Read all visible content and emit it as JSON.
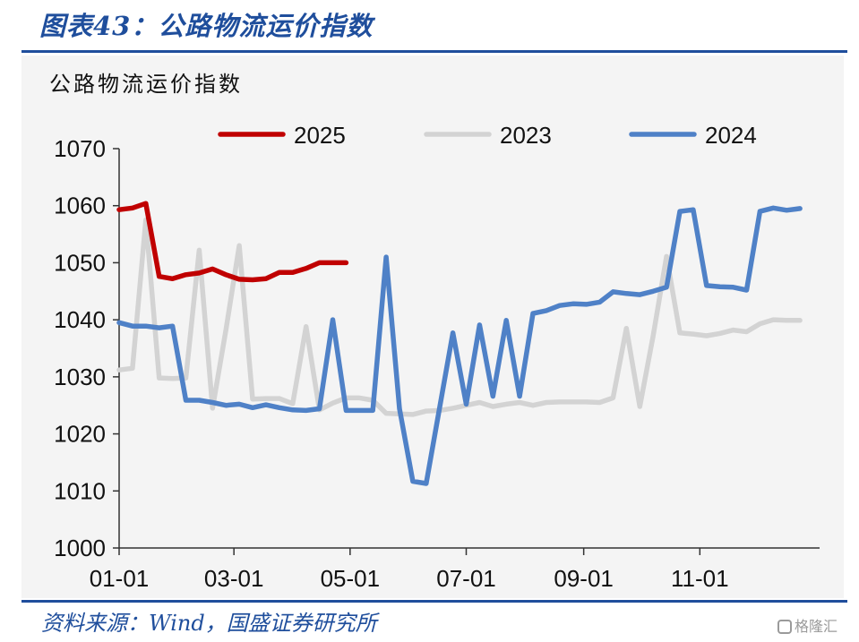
{
  "figure_title": "图表43：公路物流运价指数",
  "source": "资料来源：Wind，国盛证券研究所",
  "watermark": {
    "text": "格隆汇",
    "icon": "watermark-logo-icon"
  },
  "chart_data": {
    "type": "line",
    "title": "公路物流运价指数",
    "xlabel": "",
    "ylabel": "",
    "ylim": [
      1000,
      1070
    ],
    "yticks": [
      1000,
      1010,
      1020,
      1030,
      1040,
      1050,
      1060,
      1070
    ],
    "xlim": [
      0,
      52
    ],
    "xticks": [
      {
        "x": 0,
        "label": "01-01"
      },
      {
        "x": 8.6,
        "label": "03-01"
      },
      {
        "x": 17.3,
        "label": "05-01"
      },
      {
        "x": 26,
        "label": "07-01"
      },
      {
        "x": 34.8,
        "label": "09-01"
      },
      {
        "x": 43.5,
        "label": "11-01"
      }
    ],
    "grid": false,
    "legend": "top",
    "legend_labels": [
      "2025",
      "2023",
      "2024"
    ],
    "colors": {
      "2025": "#c00000",
      "2023": "#d3d3d3",
      "2024": "#4f81c7"
    },
    "series": [
      {
        "name": "2023",
        "x": [
          0,
          1,
          2,
          3,
          4,
          5,
          6,
          7,
          8,
          9,
          10,
          11,
          12,
          13,
          14,
          15,
          16,
          17,
          18,
          19,
          20,
          21,
          22,
          23,
          24,
          25,
          26,
          27,
          28,
          29,
          30,
          31,
          32,
          33,
          34,
          35,
          36,
          37,
          38,
          39,
          40,
          41,
          42,
          43,
          44,
          45,
          46,
          47,
          48,
          49,
          50,
          51
        ],
        "values": [
          1031.2,
          1031.5,
          1057.5,
          1029.8,
          1029.7,
          1029.8,
          1052.2,
          1024.5,
          1038.2,
          1053.0,
          1026.1,
          1026.2,
          1026.2,
          1025.3,
          1038.8,
          1024.2,
          1025.4,
          1026.3,
          1026.3,
          1025.9,
          1023.6,
          1023.5,
          1023.4,
          1024.0,
          1024.1,
          1024.5,
          1025.0,
          1025.5,
          1024.8,
          1025.2,
          1025.5,
          1025.0,
          1025.5,
          1025.6,
          1025.6,
          1025.6,
          1025.5,
          1026.3,
          1038.5,
          1024.8,
          1037.2,
          1051.1,
          1037.7,
          1037.5,
          1037.2,
          1037.6,
          1038.2,
          1037.9,
          1039.3,
          1040.0,
          1039.9,
          1039.9
        ]
      },
      {
        "name": "2024",
        "x": [
          0,
          1,
          2,
          3,
          4,
          5,
          6,
          7,
          8,
          9,
          10,
          11,
          12,
          13,
          14,
          15,
          16,
          17,
          18,
          19,
          20,
          21,
          22,
          23,
          24,
          25,
          26,
          27,
          28,
          29,
          30,
          31,
          32,
          33,
          34,
          35,
          36,
          37,
          38,
          39,
          40,
          41,
          42,
          43,
          44,
          45,
          46,
          47,
          48,
          49,
          50,
          51
        ],
        "values": [
          1039.5,
          1038.9,
          1038.9,
          1038.6,
          1038.9,
          1025.9,
          1025.9,
          1025.5,
          1025.0,
          1025.2,
          1024.6,
          1025.1,
          1024.6,
          1024.2,
          1024.1,
          1024.4,
          1040.0,
          1024.1,
          1024.1,
          1024.1,
          1051.0,
          1024.4,
          1011.7,
          1011.3,
          1024.5,
          1037.7,
          1025.2,
          1039.1,
          1026.6,
          1039.9,
          1026.6,
          1041.1,
          1041.6,
          1042.5,
          1042.8,
          1042.7,
          1043.1,
          1044.9,
          1044.6,
          1044.4,
          1045.0,
          1045.7,
          1059.0,
          1059.3,
          1046.0,
          1045.8,
          1045.7,
          1045.2,
          1059.0,
          1059.6,
          1059.2,
          1059.5
        ]
      },
      {
        "name": "2025",
        "x": [
          0,
          1,
          2,
          3,
          4,
          5,
          6,
          7,
          8,
          9,
          10,
          11,
          12,
          13,
          14,
          15,
          16,
          17
        ],
        "values": [
          1059.3,
          1059.6,
          1060.4,
          1047.6,
          1047.2,
          1047.9,
          1048.2,
          1048.9,
          1047.9,
          1047.1,
          1047.0,
          1047.2,
          1048.3,
          1048.3,
          1049.0,
          1050.0,
          1050.0,
          1050.0
        ]
      }
    ]
  }
}
